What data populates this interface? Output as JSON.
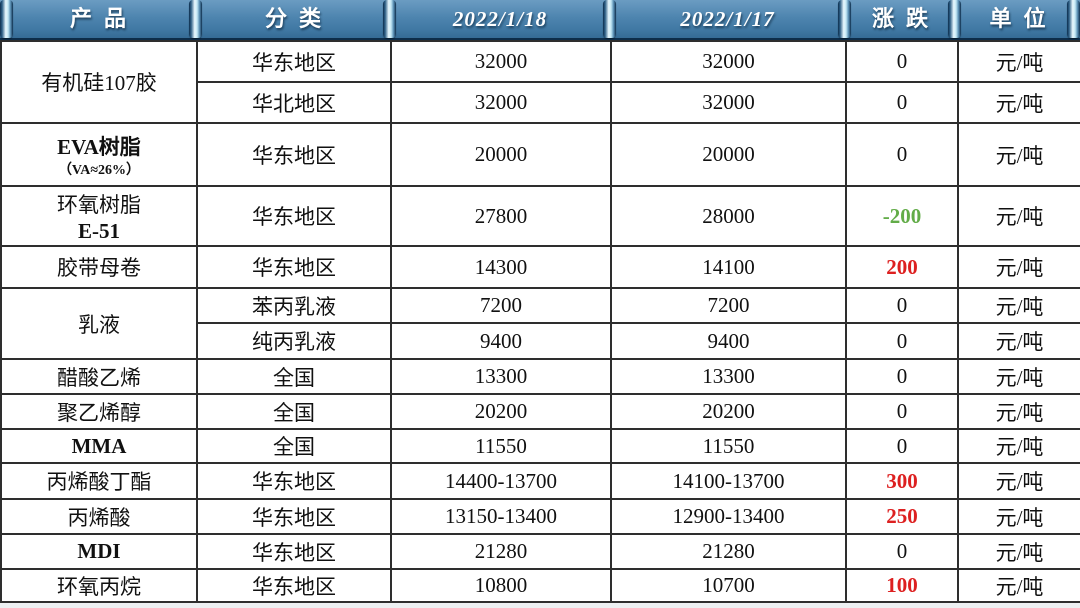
{
  "colors": {
    "header_blue": "#4e85af",
    "up_red": "#dd2020",
    "down_green": "#62ac48"
  },
  "table": {
    "headers": [
      {
        "label": "产品"
      },
      {
        "label": "分类"
      },
      {
        "label": "2022/1/18",
        "italic": true
      },
      {
        "label": "2022/1/17",
        "italic": true
      },
      {
        "label": "涨跌"
      },
      {
        "label": "单位"
      }
    ],
    "groups": [
      {
        "product": "有机硅107胶",
        "rows": [
          {
            "category": "华东地区",
            "d0118": "32000",
            "d0117": "32000",
            "change": "0",
            "trend": "flat",
            "unit": "元/吨"
          },
          {
            "category": "华北地区",
            "d0118": "32000",
            "d0117": "32000",
            "change": "0",
            "trend": "flat",
            "unit": "元/吨"
          }
        ]
      },
      {
        "product": "EVA树脂",
        "product_bold": true,
        "product2": "（VA≈26%）",
        "product2_small": true,
        "rows": [
          {
            "category": "华东地区",
            "d0118": "20000",
            "d0117": "20000",
            "change": "0",
            "trend": "flat",
            "unit": "元/吨"
          }
        ]
      },
      {
        "product": "环氧树脂",
        "product2": "E-51",
        "product2_bold": true,
        "rows": [
          {
            "category": "华东地区",
            "d0118": "27800",
            "d0117": "28000",
            "change": "-200",
            "trend": "down",
            "unit": "元/吨"
          }
        ]
      },
      {
        "product": "胶带母卷",
        "rows": [
          {
            "category": "华东地区",
            "d0118": "14300",
            "d0117": "14100",
            "change": "200",
            "trend": "up",
            "unit": "元/吨"
          }
        ]
      },
      {
        "product": "乳液",
        "rows": [
          {
            "category": "苯丙乳液",
            "d0118": "7200",
            "d0117": "7200",
            "change": "0",
            "trend": "flat",
            "unit": "元/吨"
          },
          {
            "category": "纯丙乳液",
            "d0118": "9400",
            "d0117": "9400",
            "change": "0",
            "trend": "flat",
            "unit": "元/吨"
          }
        ]
      },
      {
        "product": "醋酸乙烯",
        "rows": [
          {
            "category": "全国",
            "d0118": "13300",
            "d0117": "13300",
            "change": "0",
            "trend": "flat",
            "unit": "元/吨"
          }
        ]
      },
      {
        "product": "聚乙烯醇",
        "rows": [
          {
            "category": "全国",
            "d0118": "20200",
            "d0117": "20200",
            "change": "0",
            "trend": "flat",
            "unit": "元/吨"
          }
        ]
      },
      {
        "product": "MMA",
        "product_bold": true,
        "rows": [
          {
            "category": "全国",
            "d0118": "11550",
            "d0117": "11550",
            "change": "0",
            "trend": "flat",
            "unit": "元/吨"
          }
        ]
      },
      {
        "product": "丙烯酸丁酯",
        "rows": [
          {
            "category": "华东地区",
            "d0118": "14400-13700",
            "d0117": "14100-13700",
            "change": "300",
            "trend": "up",
            "unit": "元/吨"
          }
        ]
      },
      {
        "product": "丙烯酸",
        "rows": [
          {
            "category": "华东地区",
            "d0118": "13150-13400",
            "d0117": "12900-13400",
            "change": "250",
            "trend": "up",
            "unit": "元/吨"
          }
        ]
      },
      {
        "product": "MDI",
        "product_bold": true,
        "rows": [
          {
            "category": "华东地区",
            "d0118": "21280",
            "d0117": "21280",
            "change": "0",
            "trend": "flat",
            "unit": "元/吨"
          }
        ]
      },
      {
        "product": "环氧丙烷",
        "rows": [
          {
            "category": "华东地区",
            "d0118": "10800",
            "d0117": "10700",
            "change": "100",
            "trend": "up",
            "unit": "元/吨"
          }
        ]
      }
    ]
  }
}
